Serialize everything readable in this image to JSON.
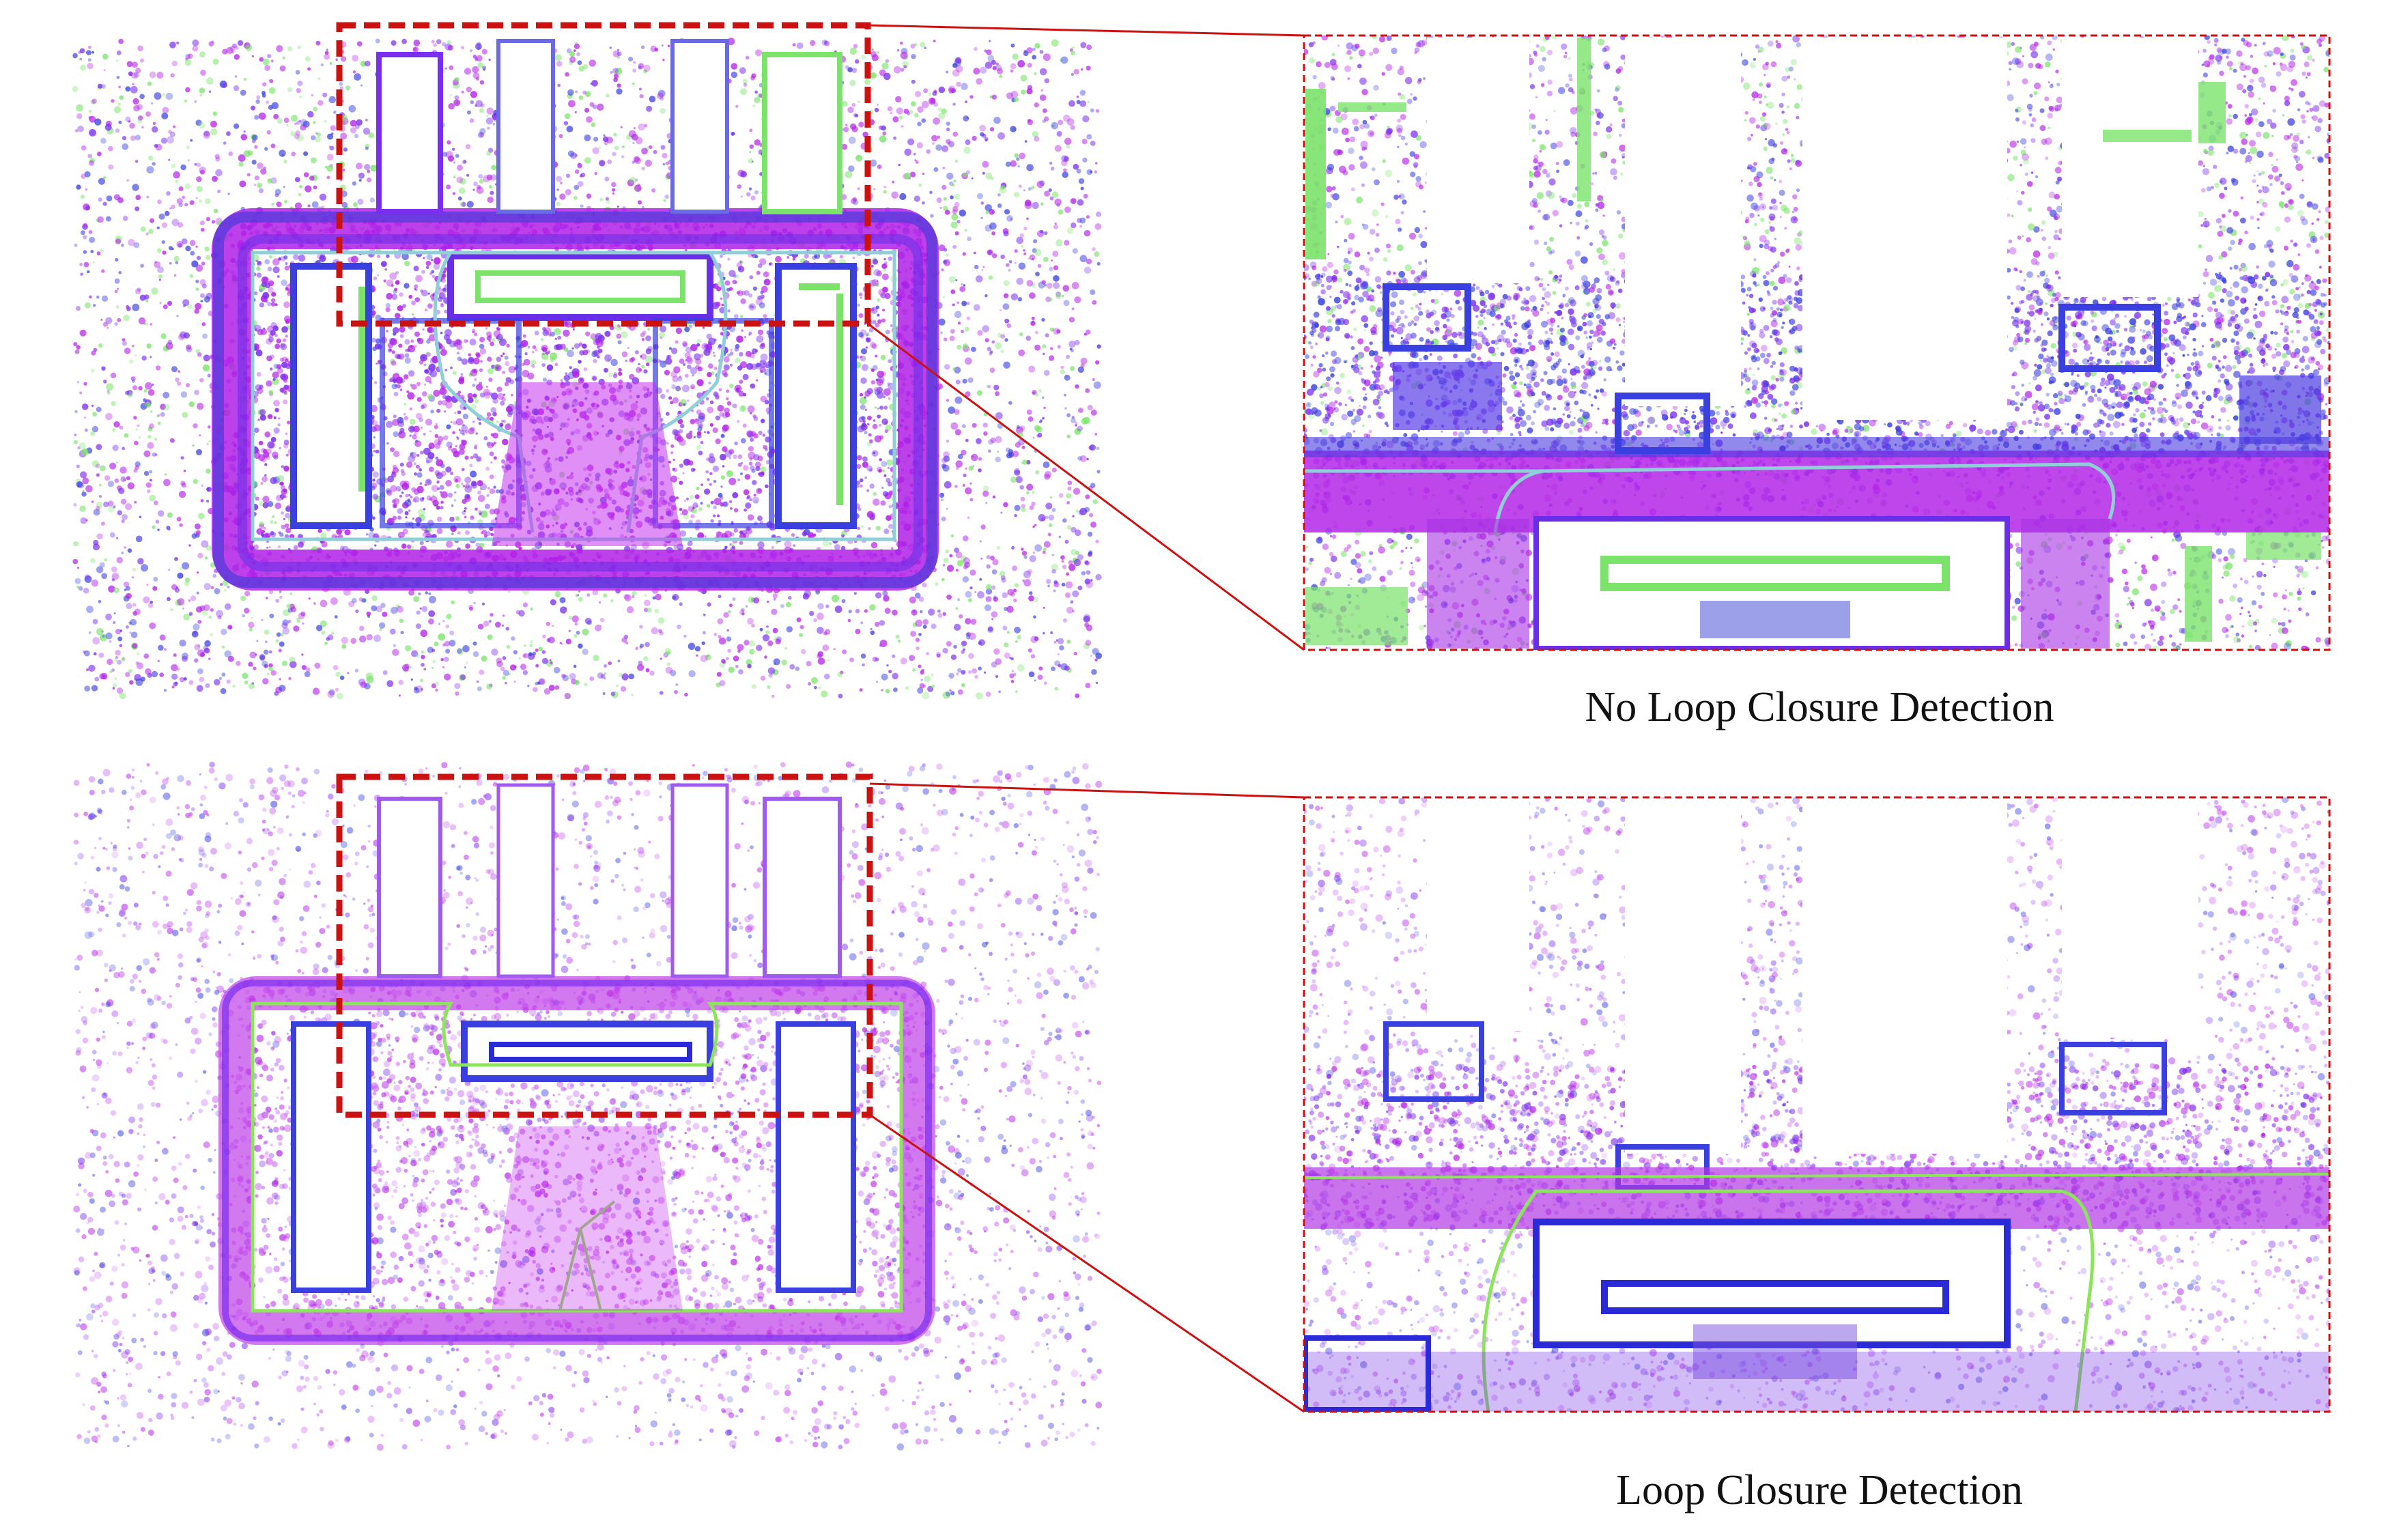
{
  "captions": {
    "top": "No Loop Closure Detection",
    "bottom": "Loop Closure Detection"
  },
  "colors": {
    "background": "#ffffff",
    "magenta_points": "#b422e8",
    "violet_points": "#7a2ef0",
    "blue_points": "#3a3fe0",
    "green_points": "#7be36a",
    "highlight_box": "#cc1111",
    "trajectory_top": "#8fd0d8",
    "trajectory_bottom": "#8be45a"
  },
  "panels": [
    {
      "id": "overview-no-loop",
      "drift": true
    },
    {
      "id": "zoom-no-loop",
      "drift": true
    },
    {
      "id": "overview-loop",
      "drift": false
    },
    {
      "id": "zoom-loop",
      "drift": false
    }
  ]
}
